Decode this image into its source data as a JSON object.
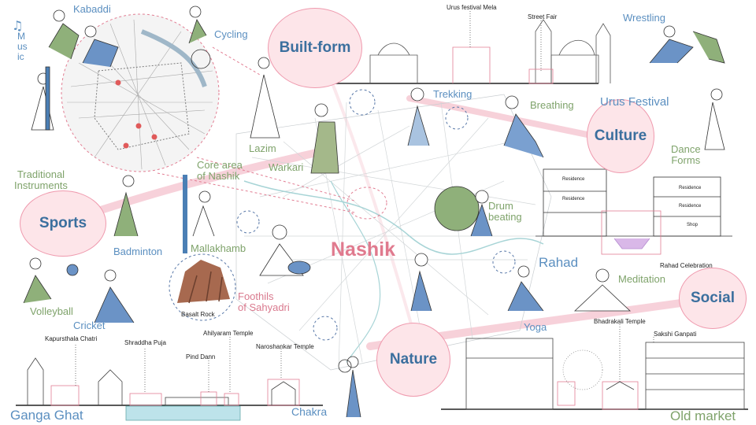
{
  "title": "Nashik",
  "themes": {
    "built_form": "Built-form",
    "culture": "Culture",
    "sports": "Sports",
    "social": "Social",
    "nature": "Nature"
  },
  "labels": {
    "kabaddi": "Kabaddi",
    "cycling": "Cycling",
    "music": "Music",
    "traditional_instruments": "Traditional\nInstruments",
    "lazim": "Lazim",
    "core_area": "Core area\nof Nashik",
    "warkari": "Warkari",
    "trekking": "Trekking",
    "breathing": "Breathing",
    "wrestling": "Wrestling",
    "urus_festival": "Urus Festival",
    "dance_forms": "Dance\nForms",
    "drum_beating": "Drum\nbeating",
    "badminton": "Badminton",
    "mallakhamb": "Mallakhamb",
    "volleyball": "Volleyball",
    "cricket": "Cricket",
    "basalt_rock": "Basalt Rock",
    "foothills": "Foothils\nof Sahyadri",
    "rahad": "Rahad",
    "meditation": "Meditation",
    "yoga": "Yoga",
    "ganga_ghat": "Ganga Ghat",
    "chakra": "Chakra",
    "old_market": "Old market"
  },
  "annotations": {
    "urus_mela": "Urus festival Mela",
    "street_fair": "Street Fair",
    "rahad_celebration": "Rahad Celebration",
    "bhadrakali": "Bhadrakali Temple",
    "sakshi_ganpati": "Sakshi Ganpati",
    "kapurthala": "Kapursthala Chatri",
    "shraddha_puja": "Shraddha Puja",
    "ahilyaram": "Ahilyaram Temple",
    "pind_dann": "Pind Dann",
    "naroshankar": "Naroshankar Temple",
    "residence1": "Residence",
    "residence2": "Residence",
    "residence3": "Residence",
    "residence4": "Residence",
    "shop": "Shop"
  },
  "colors": {
    "theme_blue": "#5b8fc0",
    "theme_green": "#7fa36b",
    "accent_pink": "#e07a8e",
    "circle_fill": "#fde5e9"
  }
}
